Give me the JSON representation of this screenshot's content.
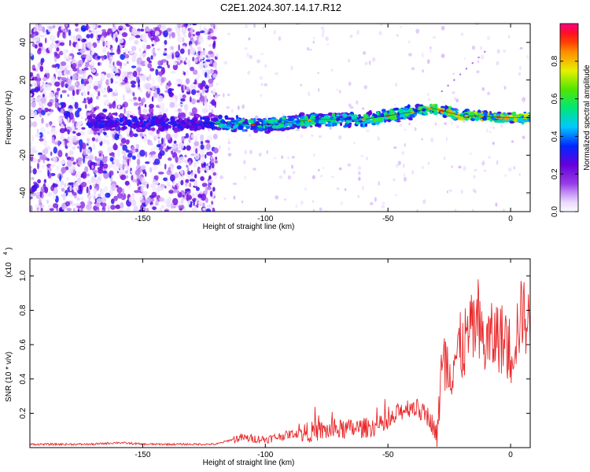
{
  "title": "C2E1.2024.307.14.17.R12",
  "chart_data": [
    {
      "type": "heatmap",
      "xlabel": "Height of straight line (km)",
      "ylabel": "Frequency (Hz)",
      "xlim": [
        -196,
        8
      ],
      "ylim": [
        -50,
        50
      ],
      "xticks": [
        -150,
        -100,
        -50,
        0
      ],
      "yticks": [
        -40,
        -20,
        0,
        20,
        40
      ],
      "colorbar": {
        "label": "Normalized spectral amplitude",
        "range": [
          0,
          1
        ],
        "ticks": [
          0.0,
          0.2,
          0.4,
          0.6,
          0.8
        ]
      },
      "ridge": {
        "description_points_x": [
          -170,
          -150,
          -130,
          -120,
          -100,
          -80,
          -60,
          -40,
          -32,
          -20,
          0,
          8
        ],
        "description_points_y": [
          -2,
          -3,
          -3,
          -3,
          -4,
          -1,
          -1,
          3,
          5,
          1,
          0,
          0
        ]
      }
    },
    {
      "type": "line",
      "xlabel": "Height of straight line (km)",
      "ylabel": "SNR (10 * v/v)",
      "yscale_label": "(x10",
      "yscale_exp": "4",
      "xlim": [
        -196,
        8
      ],
      "ylim": [
        0.0,
        1.1
      ],
      "xticks": [
        -150,
        -100,
        -50,
        0
      ],
      "yticks": [
        0.2,
        0.4,
        0.6,
        0.8,
        1.0
      ],
      "color": "#e8292b",
      "series": [
        {
          "x": [
            -196,
            -170,
            -160,
            -150,
            -120,
            -113,
            -110,
            -100,
            -90,
            -80,
            -70,
            -60,
            -50,
            -45,
            -40,
            -33,
            -30,
            -28,
            -20,
            -15,
            -10,
            -5,
            0,
            5,
            8
          ],
          "y": [
            0.02,
            0.02,
            0.03,
            0.02,
            0.02,
            0.05,
            0.06,
            0.05,
            0.08,
            0.1,
            0.11,
            0.12,
            0.14,
            0.22,
            0.25,
            0.18,
            0.08,
            0.45,
            0.6,
            0.72,
            0.62,
            0.68,
            0.58,
            0.82,
            0.7
          ]
        }
      ]
    }
  ]
}
